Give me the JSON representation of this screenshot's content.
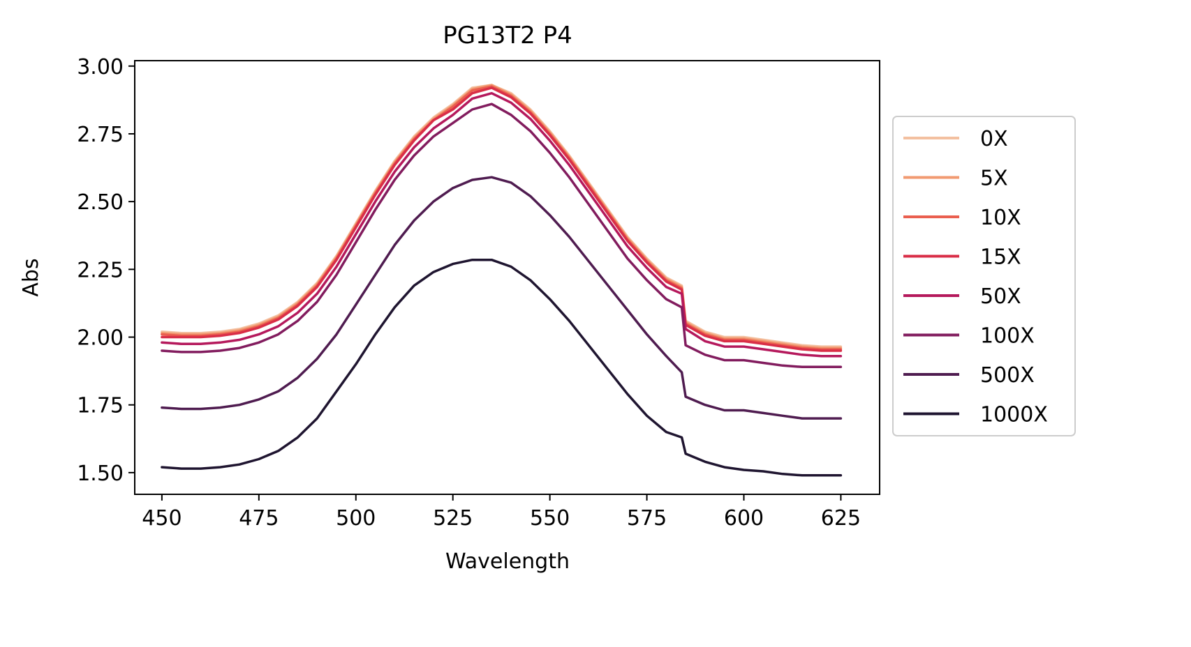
{
  "chart_data": {
    "type": "line",
    "title": "PG13T2 P4",
    "xlabel": "Wavelength",
    "ylabel": "Abs",
    "xlim": [
      443,
      635
    ],
    "ylim": [
      1.42,
      3.02
    ],
    "xticks": [
      450,
      475,
      500,
      525,
      550,
      575,
      600,
      625
    ],
    "xtick_labels": [
      "450",
      "475",
      "500",
      "525",
      "550",
      "575",
      "600",
      "625"
    ],
    "yticks": [
      1.5,
      1.75,
      2.0,
      2.25,
      2.5,
      2.75,
      3.0
    ],
    "ytick_labels": [
      "1.50",
      "1.75",
      "2.00",
      "2.25",
      "2.50",
      "2.75",
      "3.00"
    ],
    "grid": false,
    "legend_position": "outside-right",
    "x": [
      450,
      455,
      460,
      465,
      470,
      475,
      480,
      485,
      490,
      495,
      500,
      505,
      510,
      515,
      520,
      525,
      530,
      535,
      540,
      545,
      550,
      555,
      560,
      565,
      570,
      575,
      580,
      584,
      585,
      590,
      595,
      600,
      605,
      610,
      615,
      620,
      625
    ],
    "series": [
      {
        "name": "0X",
        "color": "#f3c0a0",
        "values": [
          2.02,
          2.015,
          2.015,
          2.02,
          2.03,
          2.05,
          2.08,
          2.13,
          2.2,
          2.3,
          2.42,
          2.54,
          2.65,
          2.74,
          2.81,
          2.86,
          2.92,
          2.93,
          2.9,
          2.84,
          2.76,
          2.67,
          2.57,
          2.47,
          2.37,
          2.29,
          2.22,
          2.19,
          2.06,
          2.02,
          2.0,
          2.0,
          1.99,
          1.98,
          1.97,
          1.965,
          1.965
        ]
      },
      {
        "name": "5X",
        "color": "#f19a71",
        "values": [
          2.015,
          2.01,
          2.01,
          2.015,
          2.025,
          2.045,
          2.075,
          2.125,
          2.195,
          2.295,
          2.415,
          2.535,
          2.645,
          2.735,
          2.805,
          2.855,
          2.915,
          2.93,
          2.895,
          2.835,
          2.755,
          2.665,
          2.565,
          2.465,
          2.365,
          2.285,
          2.215,
          2.185,
          2.055,
          2.015,
          1.995,
          1.995,
          1.985,
          1.975,
          1.965,
          1.96,
          1.96
        ]
      },
      {
        "name": "10X",
        "color": "#ea5f4f",
        "values": [
          2.01,
          2.005,
          2.005,
          2.01,
          2.02,
          2.04,
          2.07,
          2.12,
          2.19,
          2.29,
          2.41,
          2.53,
          2.64,
          2.73,
          2.8,
          2.85,
          2.91,
          2.925,
          2.89,
          2.83,
          2.75,
          2.66,
          2.56,
          2.46,
          2.36,
          2.28,
          2.21,
          2.18,
          2.05,
          2.01,
          1.99,
          1.99,
          1.98,
          1.97,
          1.96,
          1.955,
          1.955
        ]
      },
      {
        "name": "15X",
        "color": "#d92e47",
        "values": [
          2.0,
          2.0,
          2.0,
          2.005,
          2.015,
          2.035,
          2.065,
          2.115,
          2.185,
          2.285,
          2.405,
          2.525,
          2.635,
          2.725,
          2.8,
          2.84,
          2.9,
          2.92,
          2.885,
          2.825,
          2.745,
          2.655,
          2.555,
          2.455,
          2.355,
          2.275,
          2.205,
          2.175,
          2.045,
          2.005,
          1.985,
          1.985,
          1.975,
          1.965,
          1.955,
          1.95,
          1.95
        ]
      },
      {
        "name": "50X",
        "color": "#b5195c",
        "values": [
          1.98,
          1.975,
          1.975,
          1.98,
          1.99,
          2.01,
          2.04,
          2.09,
          2.16,
          2.26,
          2.38,
          2.5,
          2.61,
          2.7,
          2.77,
          2.82,
          2.88,
          2.9,
          2.865,
          2.805,
          2.725,
          2.635,
          2.535,
          2.435,
          2.335,
          2.255,
          2.185,
          2.16,
          2.03,
          1.985,
          1.965,
          1.965,
          1.955,
          1.945,
          1.935,
          1.93,
          1.93
        ]
      },
      {
        "name": "100X",
        "color": "#821c5e",
        "values": [
          1.95,
          1.945,
          1.945,
          1.95,
          1.96,
          1.98,
          2.01,
          2.06,
          2.13,
          2.23,
          2.35,
          2.47,
          2.58,
          2.67,
          2.74,
          2.79,
          2.84,
          2.86,
          2.82,
          2.76,
          2.68,
          2.59,
          2.49,
          2.39,
          2.29,
          2.21,
          2.14,
          2.11,
          1.97,
          1.935,
          1.915,
          1.915,
          1.905,
          1.895,
          1.89,
          1.89,
          1.89
        ]
      },
      {
        "name": "500X",
        "color": "#4f1c50",
        "values": [
          1.74,
          1.735,
          1.735,
          1.74,
          1.75,
          1.77,
          1.8,
          1.85,
          1.92,
          2.01,
          2.12,
          2.23,
          2.34,
          2.43,
          2.5,
          2.55,
          2.58,
          2.59,
          2.57,
          2.52,
          2.45,
          2.37,
          2.28,
          2.19,
          2.1,
          2.01,
          1.93,
          1.87,
          1.78,
          1.75,
          1.73,
          1.73,
          1.72,
          1.71,
          1.7,
          1.7,
          1.7
        ]
      },
      {
        "name": "1000X",
        "color": "#1f1530",
        "values": [
          1.52,
          1.515,
          1.515,
          1.52,
          1.53,
          1.55,
          1.58,
          1.63,
          1.7,
          1.8,
          1.9,
          2.01,
          2.11,
          2.19,
          2.24,
          2.27,
          2.285,
          2.285,
          2.26,
          2.21,
          2.14,
          2.06,
          1.97,
          1.88,
          1.79,
          1.71,
          1.65,
          1.63,
          1.57,
          1.54,
          1.52,
          1.51,
          1.505,
          1.495,
          1.49,
          1.49,
          1.49
        ]
      }
    ]
  }
}
